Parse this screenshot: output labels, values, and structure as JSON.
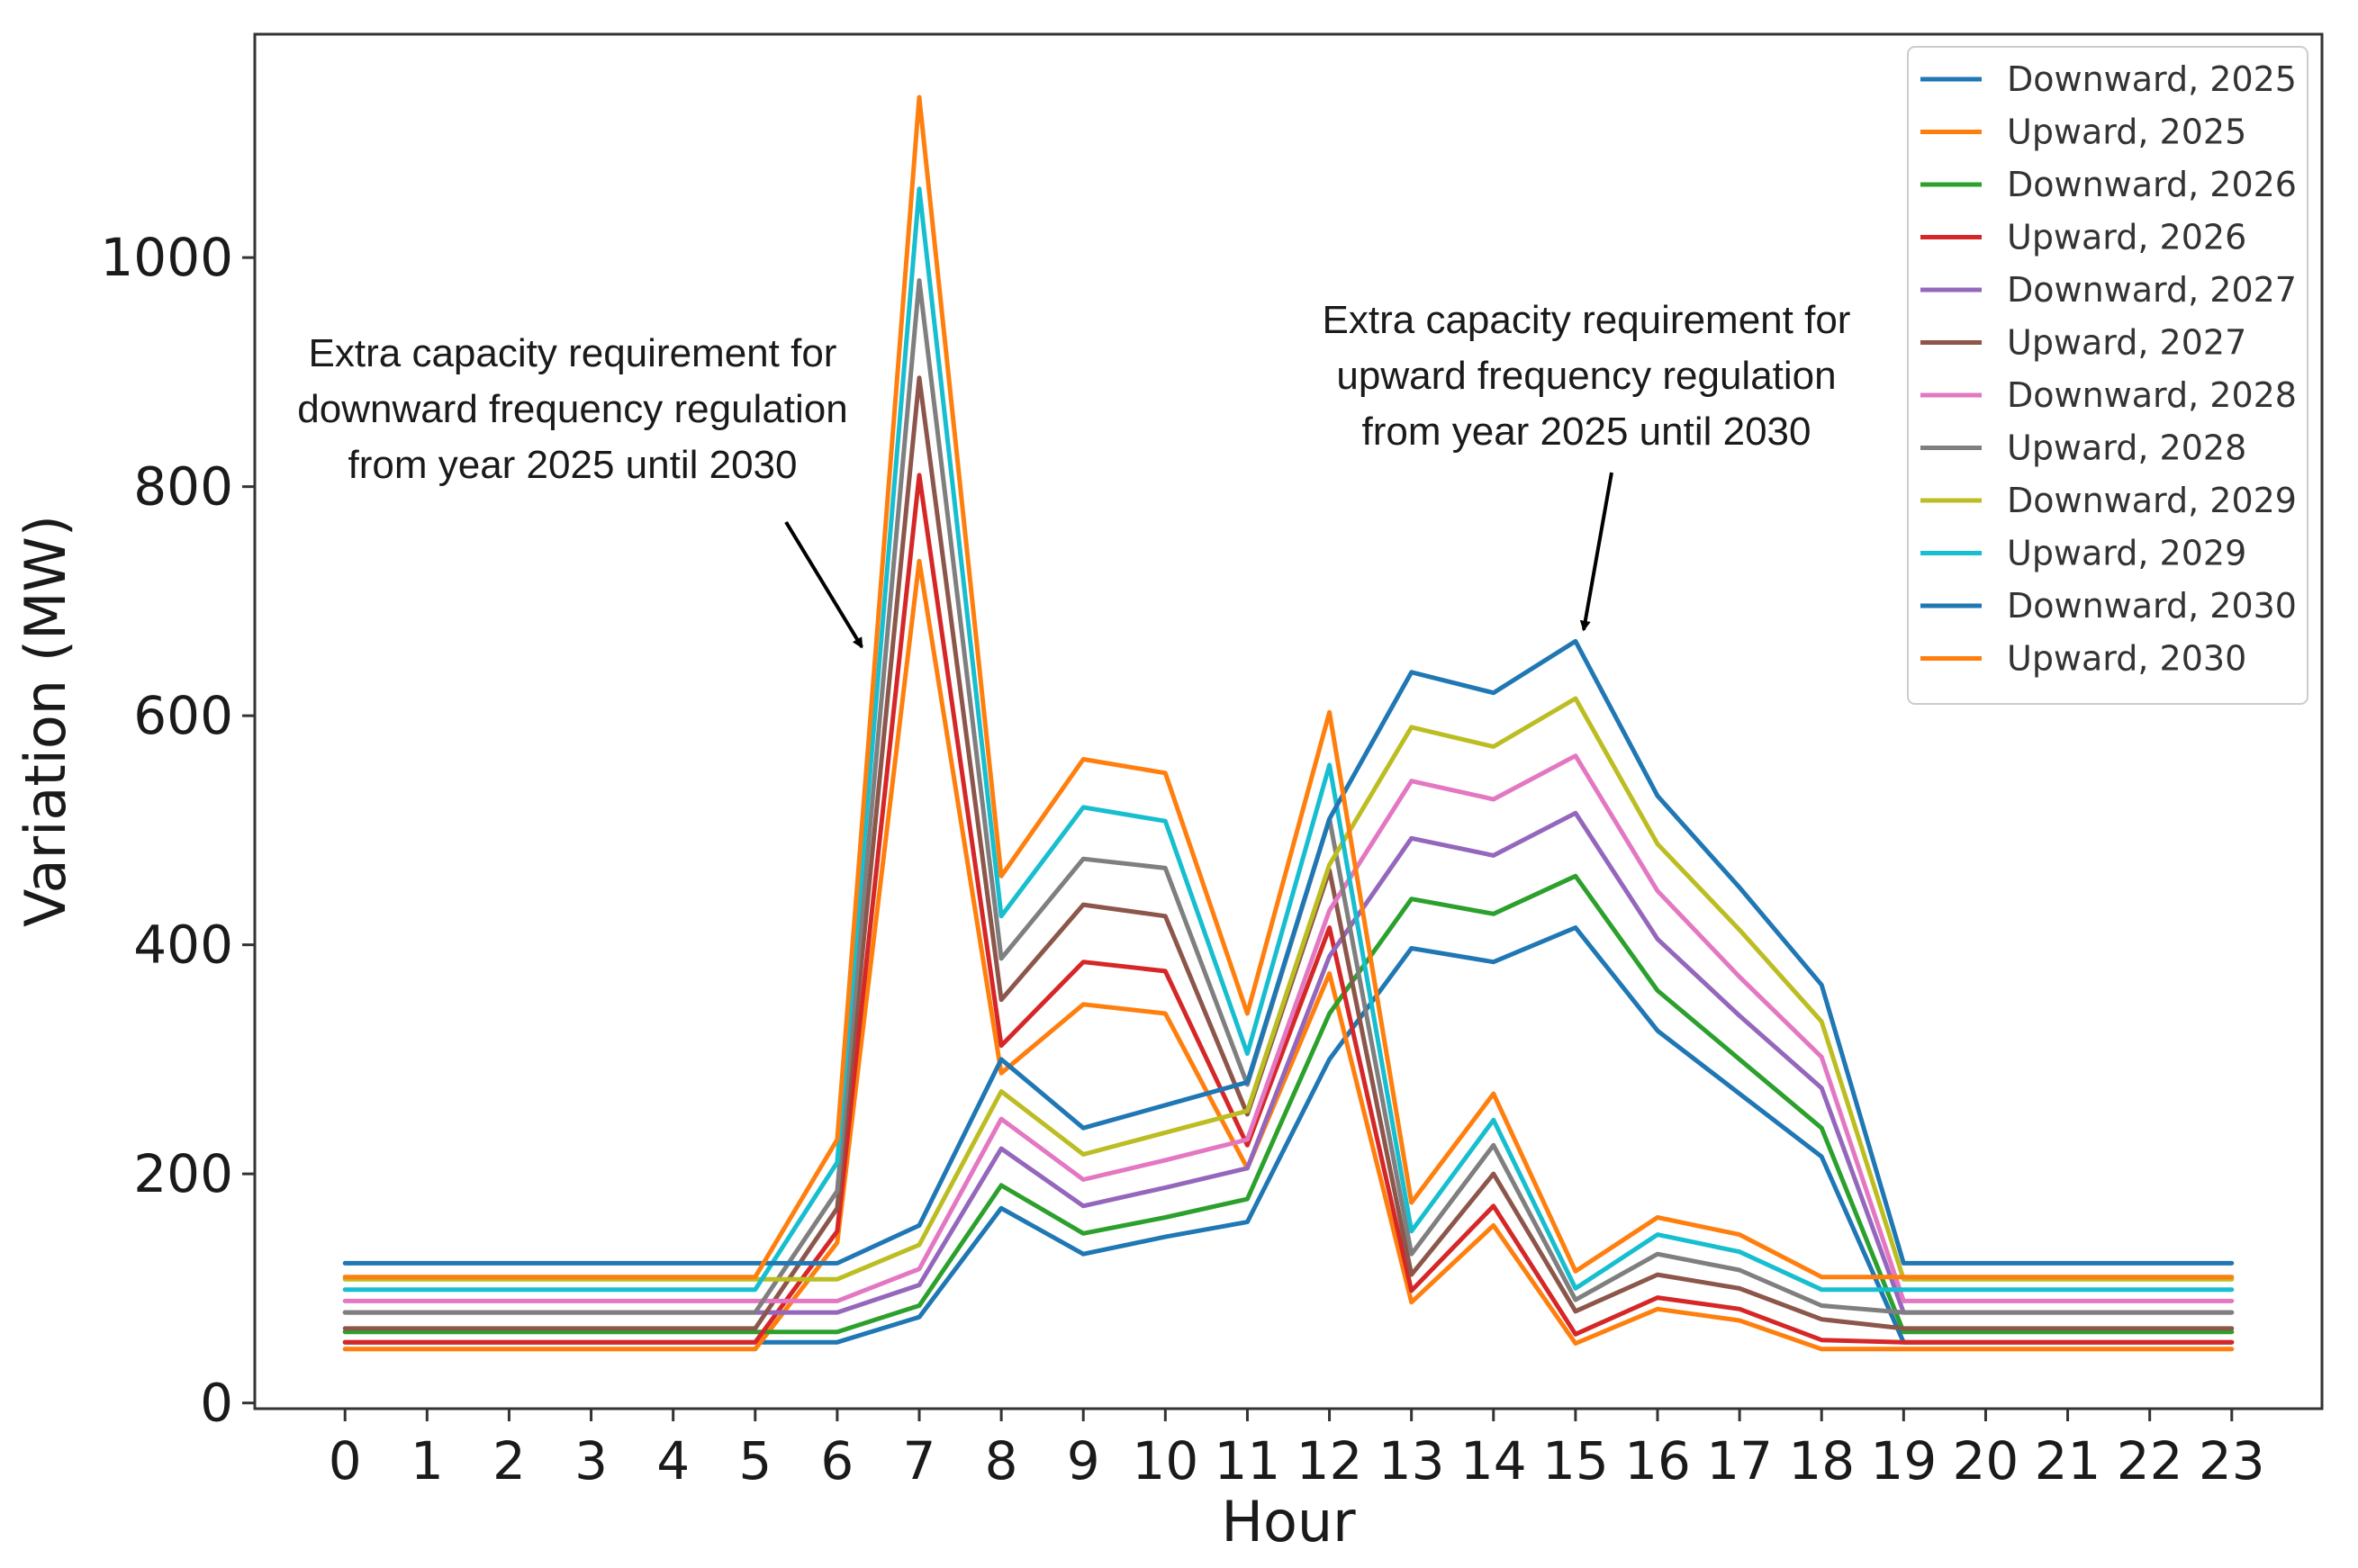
{
  "chart_data": {
    "type": "line",
    "title": "",
    "xlabel": "Hour",
    "ylabel": "Variation (MW)",
    "x": [
      0,
      1,
      2,
      3,
      4,
      5,
      6,
      7,
      8,
      9,
      10,
      11,
      12,
      13,
      14,
      15,
      16,
      17,
      18,
      19,
      20,
      21,
      22,
      23
    ],
    "xticks": [
      "0",
      "1",
      "2",
      "3",
      "4",
      "5",
      "6",
      "7",
      "8",
      "9",
      "10",
      "11",
      "12",
      "13",
      "14",
      "15",
      "16",
      "17",
      "18",
      "19",
      "20",
      "21",
      "22",
      "23"
    ],
    "xlim": [
      -1.1,
      24.1
    ],
    "ylim": [
      -5,
      1195
    ],
    "yticks": [
      0,
      200,
      400,
      600,
      800,
      1000
    ],
    "grid": false,
    "legend_position": "top-right",
    "series": [
      {
        "name": "Downward, 2025",
        "color": "#1f77b4",
        "values": [
          53,
          53,
          53,
          53,
          53,
          53,
          53,
          75,
          170,
          130,
          145,
          158,
          300,
          397,
          385,
          415,
          325,
          270,
          215,
          53,
          53,
          53,
          53,
          53
        ]
      },
      {
        "name": "Upward, 2025",
        "color": "#ff7f0e",
        "values": [
          47,
          47,
          47,
          47,
          47,
          47,
          140,
          735,
          288,
          348,
          340,
          205,
          375,
          88,
          155,
          52,
          82,
          72,
          47,
          47,
          47,
          47,
          47,
          47
        ]
      },
      {
        "name": "Downward, 2026",
        "color": "#2ca02c",
        "values": [
          62,
          62,
          62,
          62,
          62,
          62,
          62,
          85,
          190,
          148,
          162,
          178,
          340,
          440,
          427,
          460,
          360,
          300,
          240,
          62,
          62,
          62,
          62,
          62
        ]
      },
      {
        "name": "Upward, 2026",
        "color": "#d62728",
        "values": [
          53,
          53,
          53,
          53,
          53,
          53,
          150,
          810,
          312,
          385,
          377,
          225,
          415,
          98,
          172,
          60,
          92,
          82,
          55,
          53,
          53,
          53,
          53,
          53
        ]
      },
      {
        "name": "Downward, 2027",
        "color": "#9467bd",
        "values": [
          79,
          79,
          79,
          79,
          79,
          79,
          79,
          103,
          222,
          172,
          188,
          205,
          390,
          493,
          478,
          515,
          405,
          338,
          275,
          79,
          79,
          79,
          79,
          79
        ]
      },
      {
        "name": "Upward, 2027",
        "color": "#8c564b",
        "values": [
          65,
          65,
          65,
          65,
          65,
          65,
          170,
          895,
          352,
          435,
          425,
          252,
          465,
          112,
          200,
          80,
          112,
          100,
          73,
          65,
          65,
          65,
          65,
          65
        ]
      },
      {
        "name": "Downward, 2028",
        "color": "#e377c2",
        "values": [
          89,
          89,
          89,
          89,
          89,
          89,
          89,
          117,
          248,
          195,
          212,
          230,
          430,
          543,
          527,
          565,
          447,
          372,
          302,
          89,
          89,
          89,
          89,
          89
        ]
      },
      {
        "name": "Upward, 2028",
        "color": "#7f7f7f",
        "values": [
          79,
          79,
          79,
          79,
          79,
          79,
          185,
          980,
          388,
          475,
          467,
          278,
          510,
          130,
          225,
          90,
          130,
          116,
          85,
          79,
          79,
          79,
          79,
          79
        ]
      },
      {
        "name": "Downward, 2029",
        "color": "#bcbd22",
        "values": [
          108,
          108,
          108,
          108,
          108,
          108,
          108,
          138,
          272,
          217,
          236,
          255,
          470,
          590,
          573,
          615,
          488,
          413,
          333,
          108,
          108,
          108,
          108,
          108
        ]
      },
      {
        "name": "Upward, 2029",
        "color": "#17becf",
        "values": [
          99,
          99,
          99,
          99,
          99,
          99,
          210,
          1060,
          425,
          520,
          508,
          305,
          557,
          150,
          247,
          100,
          147,
          132,
          99,
          99,
          99,
          99,
          99,
          99
        ]
      },
      {
        "name": "Downward, 2030",
        "color": "#1f77b4",
        "values": [
          122,
          122,
          122,
          122,
          122,
          122,
          122,
          155,
          300,
          240,
          260,
          280,
          510,
          638,
          620,
          665,
          530,
          450,
          365,
          122,
          122,
          122,
          122,
          122
        ]
      },
      {
        "name": "Upward, 2030",
        "color": "#ff7f0e",
        "values": [
          110,
          110,
          110,
          110,
          110,
          110,
          230,
          1140,
          460,
          562,
          550,
          340,
          603,
          175,
          270,
          115,
          162,
          147,
          110,
          110,
          110,
          110,
          110,
          110
        ]
      }
    ],
    "annotations": [
      {
        "lines": [
          "Extra capacity requirement for",
          "downward frequency regulation",
          "from year 2025 until 2030"
        ],
        "arrow_to": [
          6.3,
          660
        ]
      },
      {
        "lines": [
          "Extra capacity requirement for",
          "upward frequency regulation",
          "from year 2025 until 2030"
        ],
        "arrow_to": [
          15.1,
          675
        ]
      }
    ]
  }
}
